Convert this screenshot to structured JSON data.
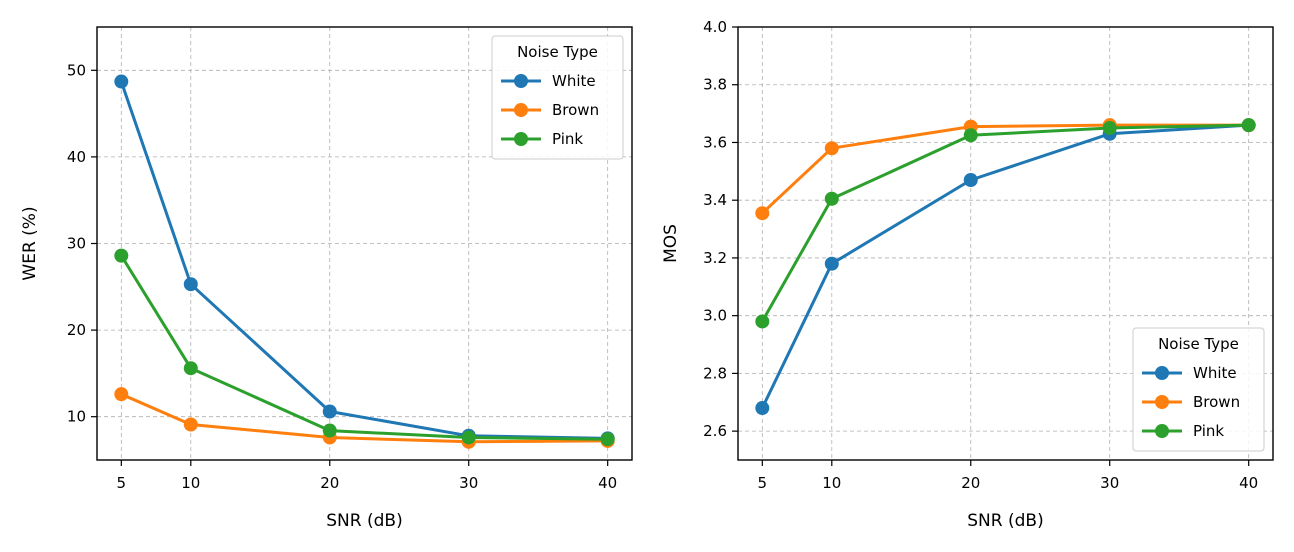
{
  "colors": {
    "White": "#1f77b4",
    "Brown": "#ff7f0e",
    "Pink": "#2ca02c"
  },
  "chart_data": [
    {
      "type": "line",
      "xlabel": "SNR (dB)",
      "ylabel": "WER (%)",
      "x": [
        5,
        10,
        20,
        30,
        40
      ],
      "xticks": [
        5,
        10,
        20,
        30,
        40
      ],
      "xlim": [
        3.25,
        41.75
      ],
      "ylim": [
        5,
        55
      ],
      "yticks": [
        10,
        20,
        30,
        40,
        50
      ],
      "grid": true,
      "legend": {
        "title": "Noise Type",
        "placement": "top-right"
      },
      "series": [
        {
          "name": "White",
          "values": [
            48.7,
            25.3,
            10.6,
            7.8,
            7.5
          ]
        },
        {
          "name": "Brown",
          "values": [
            12.6,
            9.1,
            7.6,
            7.1,
            7.2
          ]
        },
        {
          "name": "Pink",
          "values": [
            28.6,
            15.6,
            8.4,
            7.6,
            7.4
          ]
        }
      ]
    },
    {
      "type": "line",
      "xlabel": "SNR (dB)",
      "ylabel": "MOS",
      "x": [
        5,
        10,
        20,
        30,
        40
      ],
      "xticks": [
        5,
        10,
        20,
        30,
        40
      ],
      "xlim": [
        3.25,
        41.75
      ],
      "ylim": [
        2.5,
        4.0
      ],
      "yticks": [
        2.6,
        2.8,
        3.0,
        3.2,
        3.4,
        3.6,
        3.8,
        4.0
      ],
      "grid": true,
      "legend": {
        "title": "Noise Type",
        "placement": "bottom-right"
      },
      "series": [
        {
          "name": "White",
          "values": [
            2.68,
            3.18,
            3.47,
            3.63,
            3.66
          ]
        },
        {
          "name": "Brown",
          "values": [
            3.355,
            3.58,
            3.655,
            3.66,
            3.66
          ]
        },
        {
          "name": "Pink",
          "values": [
            2.98,
            3.405,
            3.625,
            3.65,
            3.66
          ]
        }
      ]
    }
  ]
}
